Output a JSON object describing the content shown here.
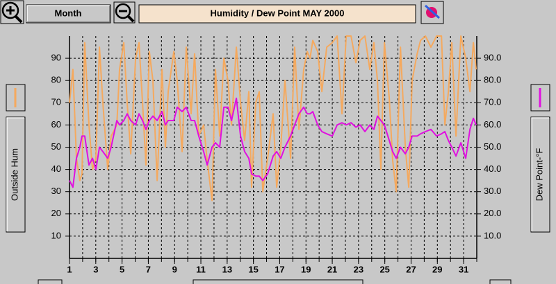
{
  "chart_data": {
    "type": "line",
    "title": "Humidity  /  Dew Point   MAY 2000",
    "period": "Month",
    "xlim": [
      1,
      32
    ],
    "xticks": [
      1,
      3,
      5,
      7,
      9,
      11,
      13,
      15,
      17,
      19,
      21,
      23,
      25,
      27,
      29,
      31
    ],
    "ylim": [
      0,
      100
    ],
    "yticks": [
      10,
      20,
      30,
      40,
      50,
      60,
      70,
      80,
      90
    ],
    "y2lim": [
      0,
      100
    ],
    "y2ticks": [
      {
        "value": 10,
        "label": "10.0"
      },
      {
        "value": 20,
        "label": "20.0"
      },
      {
        "value": 30,
        "label": "30.0"
      },
      {
        "value": 40,
        "label": "40.0"
      },
      {
        "value": 50,
        "label": "50.0"
      },
      {
        "value": 60,
        "label": "60.0"
      },
      {
        "value": 70,
        "label": "70.0"
      },
      {
        "value": 80,
        "label": "80.0"
      },
      {
        "value": 90,
        "label": "90.0"
      }
    ],
    "grid": true,
    "x": [
      1.0,
      1.26,
      1.53,
      1.79,
      1.95,
      2.16,
      2.48,
      2.75,
      3.01,
      3.28,
      3.54,
      3.91,
      4.17,
      4.6,
      4.81,
      5.13,
      5.39,
      5.66,
      6.03,
      6.29,
      6.56,
      6.82,
      7.08,
      7.35,
      7.67,
      8.04,
      8.3,
      8.51,
      8.94,
      9.2,
      9.57,
      9.89,
      10.26,
      10.52,
      10.84,
      11.21,
      11.48,
      11.85,
      12.11,
      12.43,
      12.75,
      13.06,
      13.33,
      13.7,
      14.02,
      14.33,
      14.65,
      14.86,
      15.18,
      15.44,
      15.71,
      16.08,
      16.5,
      16.77,
      17.08,
      17.4,
      17.83,
      18.14,
      18.46,
      18.83,
      19.1,
      19.31,
      19.52,
      19.89,
      20.21,
      20.58,
      21.0,
      21.37,
      21.74,
      22.06,
      22.43,
      22.8,
      23.12,
      23.49,
      23.86,
      24.17,
      24.44,
      24.7,
      24.97,
      25.34,
      25.6,
      25.87,
      26.19,
      26.56,
      26.82,
      27.08,
      27.46,
      27.72,
      28.09,
      28.51,
      28.94,
      29.31,
      29.57,
      29.84,
      30.1,
      30.42,
      30.79,
      31.16,
      31.48,
      31.74,
      31.95
    ],
    "series": [
      {
        "name": "Outside Hum",
        "color": "#f5a95e",
        "values": [
          70,
          85,
          45,
          35,
          38,
          97,
          60,
          40,
          45,
          95,
          70,
          40,
          55,
          60,
          85,
          97,
          70,
          47,
          90,
          97,
          70,
          42,
          93,
          80,
          35,
          85,
          50,
          75,
          93,
          80,
          48,
          95,
          65,
          92,
          55,
          60,
          44,
          26,
          85,
          55,
          90,
          80,
          60,
          95,
          70,
          53,
          75,
          32,
          70,
          75,
          30,
          45,
          65,
          32,
          50,
          80,
          45,
          95,
          58,
          85,
          93,
          90,
          98,
          93,
          75,
          95,
          97,
          100,
          65,
          100,
          100,
          88,
          98,
          100,
          85,
          97,
          80,
          40,
          97,
          72,
          44,
          30,
          95,
          50,
          32,
          80,
          92,
          98,
          100,
          95,
          100,
          100,
          60,
          75,
          97,
          55,
          100,
          90,
          75,
          97,
          85
        ]
      },
      {
        "name": "Dew Point-°F",
        "color": "#e010e0",
        "axis": "y2",
        "values": [
          35,
          32,
          45,
          50,
          55,
          55,
          42,
          45,
          40,
          50,
          48,
          45,
          50,
          62,
          60,
          62,
          65,
          62,
          60,
          65,
          62,
          58,
          62,
          64,
          62,
          66,
          60,
          62,
          62,
          68,
          66,
          68,
          62,
          62,
          55,
          48,
          42,
          50,
          52,
          50,
          68,
          68,
          62,
          72,
          55,
          48,
          45,
          38,
          37,
          37,
          35,
          38,
          46,
          48,
          45,
          50,
          55,
          60,
          65,
          68,
          65,
          65,
          66,
          60,
          57,
          56,
          55,
          60,
          61,
          60,
          61,
          59,
          60,
          57,
          60,
          58,
          64,
          62,
          60,
          53,
          48,
          45,
          50,
          47,
          50,
          55,
          55,
          56,
          57,
          58,
          55,
          56,
          57,
          53,
          50,
          46,
          52,
          45,
          58,
          63,
          60
        ]
      }
    ]
  }
}
